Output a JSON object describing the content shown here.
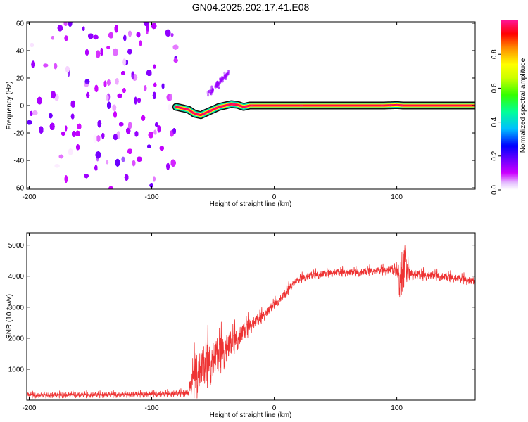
{
  "chart_data": [
    {
      "type": "heatmap",
      "title": "GN04.2025.202.17.41.E08",
      "xlabel": "Height of straight line (km)",
      "ylabel": "Frequency (Hz)",
      "xlim": [
        -202,
        164
      ],
      "ylim": [
        -61,
        61
      ],
      "xticks": [
        "-200",
        "-100",
        "0",
        "100"
      ],
      "xtick_values": [
        -200,
        -100,
        0,
        100
      ],
      "yticks": [
        "60",
        "40",
        "20",
        "0",
        "-20",
        "-40",
        "-60"
      ],
      "ytick_values": [
        60,
        40,
        20,
        0,
        -20,
        -40,
        -60
      ],
      "grid": false,
      "noise_region": {
        "x": [
          -202,
          -80
        ],
        "amplitude": [
          0.0,
          0.2
        ]
      },
      "fan_streak": {
        "x": [
          -55,
          -37
        ],
        "frequency": [
          7,
          24
        ],
        "amplitude": 0.15
      },
      "signal_trace": {
        "x": [
          -80,
          -75,
          -70,
          -65,
          -60,
          -55,
          -50,
          -45,
          -40,
          -35,
          -30,
          -25,
          -20,
          -15,
          0,
          50,
          90,
          100,
          105,
          164
        ],
        "frequency": [
          -1,
          -2,
          -3,
          -6,
          -7,
          -5,
          -3,
          -1,
          0,
          1,
          0.5,
          -1,
          0,
          0,
          0,
          0,
          0,
          0.3,
          0,
          0
        ],
        "peak_amplitude": 1.0
      },
      "colorbar": {
        "label": "Normalized spectral amplitude",
        "range": [
          0,
          1
        ],
        "ticks": [
          "0.0",
          "0.2",
          "0.4",
          "0.6",
          "0.8"
        ],
        "tick_values": [
          0.0,
          0.2,
          0.4,
          0.6,
          0.8
        ],
        "colormap": [
          "#ffffff",
          "#cc00ff",
          "#6a00ff",
          "#0000ff",
          "#00bfff",
          "#00ff66",
          "#66ff00",
          "#ffff00",
          "#ff8800",
          "#ff0000",
          "#ff1493"
        ]
      }
    },
    {
      "type": "line",
      "title": "",
      "xlabel": "Height of straight line (km)",
      "ylabel": "SNR (10 * v/v)",
      "xlim": [
        -202,
        164
      ],
      "ylim": [
        0,
        5400
      ],
      "xticks": [
        "-200",
        "-100",
        "0",
        "100"
      ],
      "xtick_values": [
        -200,
        -100,
        0,
        100
      ],
      "yticks": [
        "1000",
        "2000",
        "3000",
        "4000",
        "5000"
      ],
      "ytick_values": [
        1000,
        2000,
        3000,
        4000,
        5000
      ],
      "grid": false,
      "series": [
        {
          "color": "#ee3333",
          "x": [
            -202,
            -180,
            -160,
            -140,
            -120,
            -100,
            -90,
            -80,
            -70,
            -65,
            -60,
            -55,
            -50,
            -45,
            -40,
            -35,
            -30,
            -25,
            -20,
            -15,
            -10,
            -5,
            0,
            5,
            10,
            15,
            20,
            25,
            30,
            40,
            50,
            60,
            70,
            80,
            90,
            95,
            100,
            103,
            105,
            107,
            110,
            120,
            130,
            140,
            150,
            164
          ],
          "y": [
            150,
            150,
            160,
            160,
            170,
            180,
            190,
            200,
            220,
            700,
            900,
            1050,
            1200,
            1350,
            1550,
            1750,
            1950,
            2150,
            2350,
            2500,
            2650,
            2850,
            3050,
            3250,
            3450,
            3750,
            3850,
            3950,
            4000,
            4050,
            4100,
            4100,
            4100,
            4150,
            4150,
            4200,
            4100,
            3900,
            3950,
            4250,
            4050,
            4000,
            4000,
            3950,
            3900,
            3800
          ],
          "spread": [
            120,
            120,
            120,
            120,
            120,
            120,
            130,
            130,
            150,
            1100,
            1100,
            1200,
            1100,
            1000,
            900,
            700,
            600,
            500,
            450,
            350,
            300,
            250,
            250,
            200,
            250,
            200,
            200,
            200,
            200,
            200,
            200,
            200,
            200,
            200,
            220,
            250,
            300,
            1400,
            1500,
            1300,
            300,
            250,
            220,
            220,
            220,
            220
          ]
        }
      ]
    }
  ]
}
